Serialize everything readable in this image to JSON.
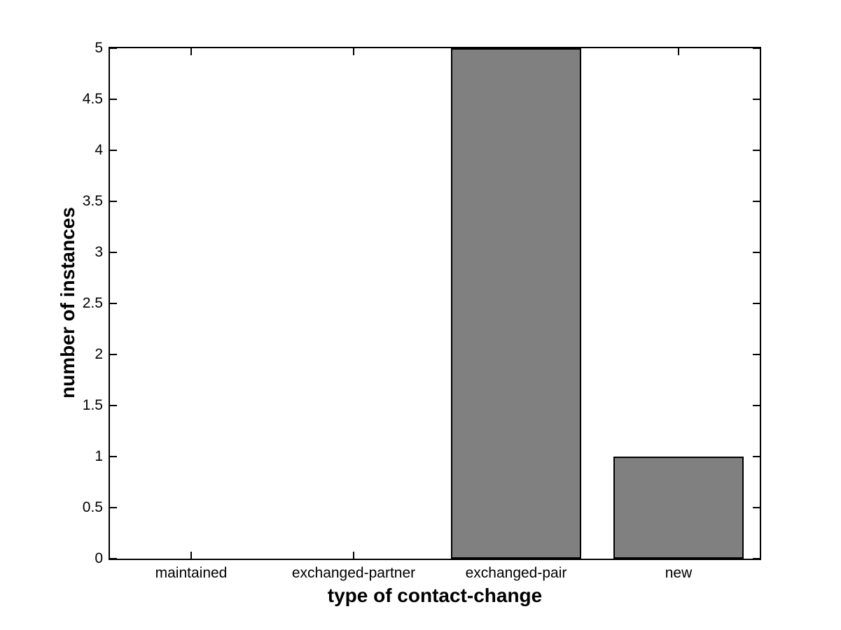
{
  "chart_data": {
    "type": "bar",
    "title": "",
    "categories": [
      "maintained",
      "exchanged-partner",
      "exchanged-pair",
      "new"
    ],
    "values": [
      0,
      0,
      5,
      1
    ],
    "xlabel": "type of contact-change",
    "ylabel": "number of instances",
    "ylim": [
      0,
      5
    ],
    "ytick_step": 0.5,
    "ytick_labels": [
      "0",
      "0.5",
      "1",
      "1.5",
      "2",
      "2.5",
      "3",
      "3.5",
      "4",
      "4.5",
      "5"
    ],
    "grid": false,
    "legend": "none",
    "bar_width_fraction": 0.8,
    "colors": {
      "bar_fill": "#808080",
      "bar_edge": "#000000",
      "axis": "#000000",
      "background": "#ffffff",
      "text": "#000000"
    }
  }
}
